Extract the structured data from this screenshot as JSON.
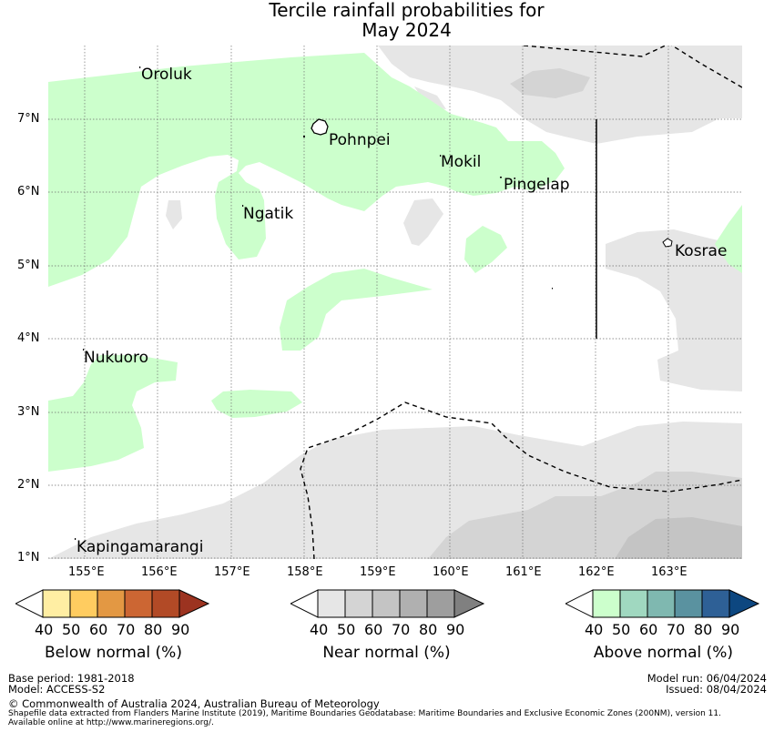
{
  "title": {
    "line1": "Tercile rainfall probabilities for",
    "line2": "May 2024"
  },
  "map": {
    "lon_labels": [
      "155°E",
      "156°E",
      "157°E",
      "158°E",
      "159°E",
      "160°E",
      "161°E",
      "162°E",
      "163°E"
    ],
    "lat_labels": [
      "7°N",
      "6°N",
      "5°N",
      "4°N",
      "3°N",
      "2°N",
      "1°N"
    ],
    "places": [
      "Oroluk",
      "Pohnpei",
      "Mokil",
      "Pingelap",
      "Ngatik",
      "Kosrae",
      "Nukuoro",
      "Kapingamarangi"
    ],
    "colors": {
      "above_50": "#ccffcc",
      "near_40": "#e6e6e6",
      "near_50": "#d4d4d4",
      "near_60": "#c4c4c4",
      "boundary": "#000000",
      "grid": "#6e6e6e"
    }
  },
  "legends": [
    {
      "title": "Below normal (%)",
      "ticks": [
        "40",
        "50",
        "60",
        "70",
        "80",
        "90"
      ],
      "colors": [
        "#ffffff",
        "#ffeea3",
        "#ffcc60",
        "#e39843",
        "#cc6633",
        "#b24a26",
        "#9c3320"
      ]
    },
    {
      "title": "Near normal (%)",
      "ticks": [
        "40",
        "50",
        "60",
        "70",
        "80",
        "90"
      ],
      "colors": [
        "#ffffff",
        "#e6e6e6",
        "#d4d4d4",
        "#c4c4c4",
        "#b0b0b0",
        "#9e9e9e",
        "#808080"
      ]
    },
    {
      "title": "Above normal (%)",
      "ticks": [
        "40",
        "50",
        "60",
        "70",
        "80",
        "90"
      ],
      "colors": [
        "#ffffff",
        "#ccffcc",
        "#a0d8c0",
        "#7fb8b0",
        "#5a92a0",
        "#2e6096",
        "#0d4780"
      ]
    }
  ],
  "footer": {
    "base_period": "Base period: 1981-2018",
    "model": "Model: ACCESS-S2",
    "model_run": "Model run: 06/04/2024",
    "issued": "Issued: 08/04/2024",
    "copyright": "© Commonwealth of Australia 2024, Australian Bureau of Meteorology",
    "shapefile": "Shapefile data extracted from Flanders Marine Institute (2019), Maritime Boundaries Geodatabase: Maritime Boundaries and Exclusive Economic Zones (200NM), version 11.",
    "available": "Available online at http://www.marineregions.org/."
  }
}
